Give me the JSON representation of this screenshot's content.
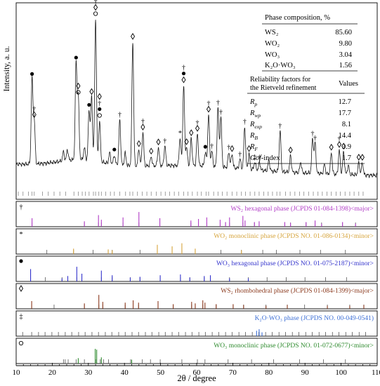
{
  "chart_data": {
    "type": "line",
    "xlabel": "2θ / degree",
    "ylabel": "Intensity, a. u.",
    "xlim": [
      10,
      110
    ],
    "x_ticks": [
      10,
      20,
      30,
      40,
      50,
      60,
      70,
      80,
      90,
      100,
      110
    ],
    "grid": false,
    "main_pattern": {
      "peaks": [
        {
          "x": 14.4,
          "h": 0.56,
          "markers": [
            "filled-circle"
          ]
        },
        {
          "x": 15.0,
          "h": 0.29,
          "markers": [
            "diamond",
            "dagger"
          ]
        },
        {
          "x": 23.1,
          "h": 0.06,
          "markers": []
        },
        {
          "x": 24.2,
          "h": 0.07,
          "markers": []
        },
        {
          "x": 26.6,
          "h": 0.64,
          "markers": [
            "filled-circle"
          ]
        },
        {
          "x": 27.2,
          "h": 0.41,
          "markers": [
            "open-circle",
            "diamond"
          ]
        },
        {
          "x": 28.9,
          "h": 0.08,
          "markers": []
        },
        {
          "x": 30.2,
          "h": 0.33,
          "markers": [
            "filled-circle"
          ]
        },
        {
          "x": 30.9,
          "h": 0.42,
          "markers": [
            "diamond"
          ]
        },
        {
          "x": 32.0,
          "h": 0.94,
          "markers": [
            "open-circle",
            "diamond",
            "dagger"
          ]
        },
        {
          "x": 33.1,
          "h": 0.27,
          "markers": [
            "open-circle",
            "filled-circle",
            "dagger",
            "diamond"
          ]
        },
        {
          "x": 35.9,
          "h": 0.07,
          "markers": []
        },
        {
          "x": 37.2,
          "h": 0.06,
          "markers": [
            "filled-circle"
          ]
        },
        {
          "x": 38.7,
          "h": 0.3,
          "markers": [
            "dagger"
          ]
        },
        {
          "x": 40.2,
          "h": 0.08,
          "markers": []
        },
        {
          "x": 42.3,
          "h": 0.82,
          "markers": [
            "diamond"
          ]
        },
        {
          "x": 44.0,
          "h": 0.11,
          "markers": [
            "diamond"
          ]
        },
        {
          "x": 45.1,
          "h": 0.22,
          "markers": [
            "diamond",
            "dagger"
          ]
        },
        {
          "x": 47.4,
          "h": 0.06,
          "markers": [
            "diamond"
          ]
        },
        {
          "x": 49.4,
          "h": 0.12,
          "markers": [
            "diamond"
          ]
        },
        {
          "x": 51.2,
          "h": 0.13,
          "markers": [
            "dagger"
          ]
        },
        {
          "x": 55.4,
          "h": 0.18,
          "markers": [
            "asterisk"
          ]
        },
        {
          "x": 56.4,
          "h": 0.53,
          "markers": [
            "diamond",
            "filled-circle",
            "dagger"
          ]
        },
        {
          "x": 57.2,
          "h": 0.12,
          "markers": [
            "diamond"
          ]
        },
        {
          "x": 58.5,
          "h": 0.18,
          "markers": [
            "diamond"
          ]
        },
        {
          "x": 60.2,
          "h": 0.21,
          "markers": [
            "diamond",
            "dagger"
          ]
        },
        {
          "x": 62.4,
          "h": 0.09,
          "markers": [
            "filled-circle"
          ]
        },
        {
          "x": 63.3,
          "h": 0.34,
          "markers": [
            "diamond",
            "dagger"
          ]
        },
        {
          "x": 64.2,
          "h": 0.1,
          "markers": [
            "dagger"
          ]
        },
        {
          "x": 65.9,
          "h": 0.39,
          "markers": [
            "dagger"
          ]
        },
        {
          "x": 66.7,
          "h": 0.33,
          "markers": [
            "dagger"
          ]
        },
        {
          "x": 68.9,
          "h": 0.1,
          "markers": [
            "dagger"
          ]
        },
        {
          "x": 69.8,
          "h": 0.09,
          "markers": [
            "diamond"
          ]
        },
        {
          "x": 72.0,
          "h": 0.06,
          "markers": [
            "dagger"
          ]
        },
        {
          "x": 73.3,
          "h": 0.28,
          "markers": [
            "dagger"
          ]
        },
        {
          "x": 74.5,
          "h": 0.1,
          "markers": [
            "diamond"
          ]
        },
        {
          "x": 76.1,
          "h": 0.05,
          "markers": [
            "double-dagger"
          ]
        },
        {
          "x": 77.4,
          "h": 0.05,
          "markers": [
            "dagger"
          ]
        },
        {
          "x": 80.0,
          "h": 0.07,
          "markers": []
        },
        {
          "x": 83.1,
          "h": 0.27,
          "markers": [
            "dagger"
          ]
        },
        {
          "x": 86.0,
          "h": 0.11,
          "markers": [
            "diamond"
          ]
        },
        {
          "x": 88.8,
          "h": 0.07,
          "markers": []
        },
        {
          "x": 92.1,
          "h": 0.23,
          "markers": [
            "dagger"
          ]
        },
        {
          "x": 92.8,
          "h": 0.2,
          "markers": [
            "dagger"
          ]
        },
        {
          "x": 95.4,
          "h": 0.06,
          "markers": []
        },
        {
          "x": 97.3,
          "h": 0.14,
          "markers": [
            "diamond"
          ]
        },
        {
          "x": 99.5,
          "h": 0.16,
          "markers": [
            "diamond",
            "dagger"
          ]
        },
        {
          "x": 100.7,
          "h": 0.15,
          "markers": [
            "diamond"
          ]
        },
        {
          "x": 102.0,
          "h": 0.06,
          "markers": []
        },
        {
          "x": 104.9,
          "h": 0.08,
          "markers": [
            "diamond"
          ]
        },
        {
          "x": 105.9,
          "h": 0.08,
          "markers": [
            "diamond"
          ]
        }
      ],
      "bragg_ticks": [
        10.6,
        11.9,
        13.4,
        14.4,
        15.0,
        17.3,
        18.9,
        20.5,
        22.1,
        23.7,
        26.0,
        27.2,
        28.3,
        29.2,
        30.2,
        31.4,
        32.0,
        32.9,
        33.6,
        34.8,
        36.1,
        37.2,
        38.7,
        40.3,
        41.5,
        42.3,
        43.6,
        44.9,
        46.2,
        47.4,
        48.8,
        50.1,
        51.3,
        52.5,
        53.8,
        55.0,
        56.4,
        57.6,
        58.8,
        60.2,
        61.3,
        62.6,
        63.3,
        64.7,
        65.9,
        67.1,
        68.4,
        69.8,
        71.1,
        72.4,
        73.5,
        74.8,
        76.1,
        77.3,
        78.6,
        79.8,
        81.0,
        82.2,
        83.1,
        84.6,
        85.9,
        87.2,
        88.5,
        89.7,
        91.0,
        92.3,
        93.6,
        94.8,
        96.1,
        97.3,
        98.6,
        99.8,
        101.1,
        102.4,
        103.6,
        104.9,
        106.1
      ]
    },
    "phase_table": {
      "title": "Phase composition, %",
      "rows": [
        {
          "label": "WS₂",
          "value": "85.60"
        },
        {
          "label": "WO₂",
          "value": "9.80"
        },
        {
          "label": "WO₃",
          "value": "3.04"
        },
        {
          "label": "K₂O·WO₃",
          "value": "1.56"
        }
      ]
    },
    "reliability_table": {
      "header_line1": "Reliability factors for",
      "header_line2": "the Rietveld refinement",
      "values_header": "Values",
      "rows": [
        {
          "sym": "R",
          "sub": "p",
          "value": "12.7"
        },
        {
          "sym": "R",
          "sub": "wp",
          "value": "17.7"
        },
        {
          "sym": "R",
          "sub": "exp",
          "value": "8.1"
        },
        {
          "sym": "R",
          "sub": "B",
          "value": "14.4"
        },
        {
          "sym": "R",
          "sub": "F",
          "value": "3.9"
        },
        {
          "sym": "Gof",
          "sub": "",
          "value": "1.7",
          "suffix": "-index"
        }
      ]
    },
    "reference_panels": [
      {
        "symbol": "dagger",
        "symbol_char": "†",
        "label": "WS₂ hexagonal phase (JCPDS 01-084-1398)<major>",
        "color": "#b13cc6",
        "ticks": [
          14.4,
          28.9,
          32.8,
          33.6,
          39.6,
          44.0,
          49.8,
          58.4,
          60.5,
          62.8,
          66.5,
          68.0,
          69.1,
          72.8,
          76.0,
          77.3,
          84.4,
          86.0,
          90.3,
          92.8,
          94.6,
          100.4,
          104.0
        ],
        "lines": [
          {
            "x": 14.4,
            "h": 0.55
          },
          {
            "x": 28.9,
            "h": 0.35
          },
          {
            "x": 32.8,
            "h": 0.75
          },
          {
            "x": 33.6,
            "h": 0.45
          },
          {
            "x": 39.6,
            "h": 0.6
          },
          {
            "x": 44.0,
            "h": 0.95
          },
          {
            "x": 49.8,
            "h": 0.55
          },
          {
            "x": 58.4,
            "h": 0.4
          },
          {
            "x": 60.5,
            "h": 0.5
          },
          {
            "x": 62.8,
            "h": 0.6
          },
          {
            "x": 66.5,
            "h": 0.45
          },
          {
            "x": 68.0,
            "h": 0.3
          },
          {
            "x": 69.1,
            "h": 0.6
          },
          {
            "x": 72.8,
            "h": 0.7
          },
          {
            "x": 73.4,
            "h": 0.4
          },
          {
            "x": 76.0,
            "h": 0.3
          },
          {
            "x": 77.3,
            "h": 0.35
          },
          {
            "x": 84.4,
            "h": 0.3
          },
          {
            "x": 86.0,
            "h": 0.25
          },
          {
            "x": 90.3,
            "h": 0.3
          },
          {
            "x": 92.8,
            "h": 0.4
          },
          {
            "x": 94.6,
            "h": 0.2
          },
          {
            "x": 100.4,
            "h": 0.3
          },
          {
            "x": 104.0,
            "h": 0.2
          }
        ]
      },
      {
        "symbol": "asterisk",
        "symbol_char": "*",
        "label": "WO₂ monoclinic phase (JCPDS NO. 01-086-0134)<minor>",
        "color": "#d6a43c",
        "ticks": [
          18.5,
          25.9,
          31.3,
          35.5,
          36.6,
          44.3,
          49.1,
          53.2,
          55.9,
          59.6,
          66.7,
          72.4,
          78.3,
          82.1,
          88.6,
          94.3,
          101.2
        ],
        "lines": [
          {
            "x": 25.9,
            "h": 0.35
          },
          {
            "x": 35.5,
            "h": 0.3
          },
          {
            "x": 36.6,
            "h": 0.25
          },
          {
            "x": 49.1,
            "h": 0.6
          },
          {
            "x": 53.2,
            "h": 0.5
          },
          {
            "x": 55.9,
            "h": 0.7
          },
          {
            "x": 59.6,
            "h": 0.35
          },
          {
            "x": 72.4,
            "h": 0.25
          }
        ]
      },
      {
        "symbol": "filled-circle",
        "symbol_char": "●",
        "label": "WO₃ hexagonal phase (JCPDS NO. 01-075-2187)<minor>",
        "color": "#3333cc",
        "ticks": [
          14.0,
          18.1,
          22.7,
          24.3,
          26.8,
          28.2,
          33.6,
          36.6,
          41.6,
          44.3,
          49.9,
          55.5,
          58.1,
          62.1,
          63.8,
          69.1,
          74.3,
          79.5,
          84.8,
          90.0,
          95.7,
          101.5
        ],
        "lines": [
          {
            "x": 14.0,
            "h": 0.8
          },
          {
            "x": 22.7,
            "h": 0.2
          },
          {
            "x": 24.3,
            "h": 0.35
          },
          {
            "x": 26.8,
            "h": 0.95
          },
          {
            "x": 28.2,
            "h": 0.5
          },
          {
            "x": 33.6,
            "h": 0.7
          },
          {
            "x": 36.6,
            "h": 0.4
          },
          {
            "x": 41.6,
            "h": 0.25
          },
          {
            "x": 44.3,
            "h": 0.3
          },
          {
            "x": 49.9,
            "h": 0.4
          },
          {
            "x": 55.5,
            "h": 0.45
          },
          {
            "x": 58.1,
            "h": 0.25
          },
          {
            "x": 62.1,
            "h": 0.35
          },
          {
            "x": 63.8,
            "h": 0.4
          },
          {
            "x": 69.1,
            "h": 0.2
          },
          {
            "x": 74.3,
            "h": 0.2
          }
        ]
      },
      {
        "symbol": "diamond",
        "symbol_char": "◊",
        "label": "WS₂ rhombohedral phase (JCPDS 01-084-1399)<major>",
        "color": "#8b3a1e",
        "ticks": [
          14.3,
          20.5,
          28.9,
          32.9,
          34.0,
          40.2,
          43.9,
          49.3,
          53.5,
          58.6,
          61.7,
          65.4,
          70.1,
          73.0,
          79.2,
          85.1,
          89.9,
          96.2,
          102.4,
          106.3
        ],
        "lines": [
          {
            "x": 14.3,
            "h": 0.5
          },
          {
            "x": 28.9,
            "h": 0.35
          },
          {
            "x": 32.9,
            "h": 0.9
          },
          {
            "x": 34.0,
            "h": 0.45
          },
          {
            "x": 40.2,
            "h": 0.4
          },
          {
            "x": 42.4,
            "h": 0.55
          },
          {
            "x": 43.9,
            "h": 0.4
          },
          {
            "x": 49.3,
            "h": 0.5
          },
          {
            "x": 53.5,
            "h": 0.3
          },
          {
            "x": 58.6,
            "h": 0.45
          },
          {
            "x": 59.6,
            "h": 0.35
          },
          {
            "x": 61.7,
            "h": 0.55
          },
          {
            "x": 62.3,
            "h": 0.4
          },
          {
            "x": 65.4,
            "h": 0.3
          },
          {
            "x": 70.1,
            "h": 0.3
          },
          {
            "x": 73.0,
            "h": 0.25
          },
          {
            "x": 79.2,
            "h": 0.2
          },
          {
            "x": 85.1,
            "h": 0.25
          },
          {
            "x": 96.2,
            "h": 0.2
          },
          {
            "x": 102.4,
            "h": 0.2
          },
          {
            "x": 106.3,
            "h": 0.25
          }
        ]
      },
      {
        "symbol": "double-dagger",
        "symbol_char": "‡",
        "label": "K₂O·WO₃ phase (JCPDS NO. 00-049-0541)",
        "color": "#3c6fd6",
        "ticks": [
          11.8,
          14.3,
          16.2,
          18.0,
          19.9,
          21.7,
          23.6,
          25.4,
          27.3,
          29.1,
          31.0,
          32.8,
          34.7,
          36.5,
          38.4,
          40.2,
          42.1,
          43.9,
          45.8,
          47.6,
          49.5,
          51.3,
          53.2,
          55.0,
          56.9,
          58.7,
          60.6,
          62.4,
          64.3,
          66.1,
          68.0,
          69.8,
          71.7,
          73.5,
          75.4,
          77.2,
          79.1,
          80.9,
          82.8,
          84.6,
          86.5,
          88.3,
          90.2,
          92.0,
          93.9,
          95.7,
          97.6,
          99.4,
          101.3,
          103.1,
          105.0,
          106.8
        ],
        "lines": [
          {
            "x": 76.6,
            "h": 0.35
          },
          {
            "x": 77.3,
            "h": 0.45
          },
          {
            "x": 78.1,
            "h": 0.25
          }
        ]
      },
      {
        "symbol": "open-circle",
        "symbol_char": "○",
        "label": "WO₃ monoclinic phase (JCPDS NO. 01-072-0677)<minor>",
        "color": "#2e8b2e",
        "ticks": [
          23.1,
          23.6,
          24.4,
          26.6,
          28.9,
          32.0,
          33.3,
          34.2,
          35.6,
          41.7,
          44.9,
          47.2,
          49.9,
          55.9,
          60.2,
          62.3,
          68.7,
          75.2,
          81.3,
          88.5,
          95.1,
          101.2
        ],
        "lines": [
          {
            "x": 27.2,
            "h": 0.35
          },
          {
            "x": 31.9,
            "h": 0.95
          },
          {
            "x": 32.3,
            "h": 0.9
          },
          {
            "x": 33.6,
            "h": 0.4
          },
          {
            "x": 42.0,
            "h": 0.25
          }
        ]
      }
    ]
  }
}
